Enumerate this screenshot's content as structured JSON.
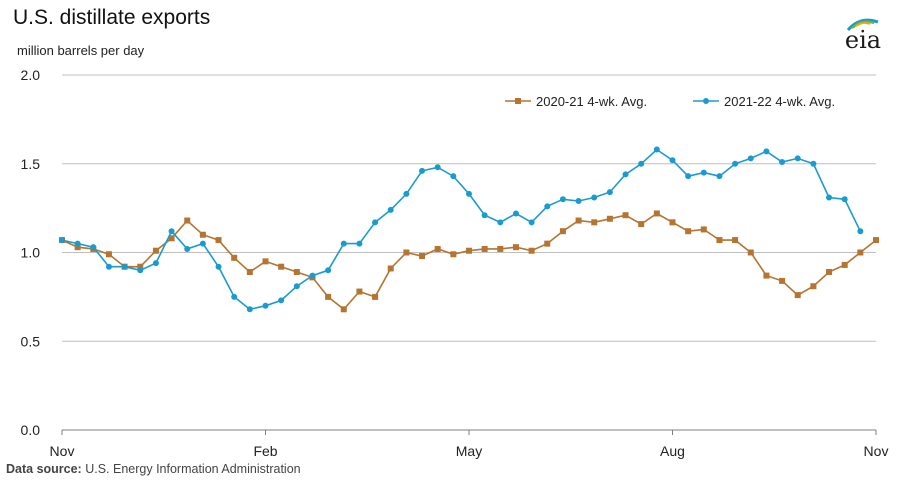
{
  "header": {
    "title": "U.S. distillate exports",
    "unit": "million barrels per day"
  },
  "logo": {
    "text": "eia"
  },
  "footer": {
    "source_label": "Data source:",
    "source_text": "U.S. Energy Information Administration"
  },
  "colors": {
    "series_2020": "#b5742f",
    "series_2021": "#1a9bd0",
    "grid": "#bfbfbf",
    "axis": "#7f7f7f"
  },
  "chart_data": {
    "type": "line",
    "title": "U.S. distillate exports",
    "ylabel": "million barrels per day",
    "ylim": [
      0,
      2.0
    ],
    "yticks": [
      "0.0",
      "0.5",
      "1.0",
      "1.5",
      "2.0"
    ],
    "xticks": [
      "Nov",
      "Feb",
      "May",
      "Aug",
      "Nov"
    ],
    "legend_position": "top-right",
    "grid": true,
    "series": [
      {
        "name": "2020-21  4-wk. Avg.",
        "marker": "square",
        "values": [
          1.07,
          1.03,
          1.02,
          0.99,
          0.92,
          0.92,
          1.01,
          1.08,
          1.18,
          1.1,
          1.07,
          0.97,
          0.89,
          0.95,
          0.92,
          0.89,
          0.86,
          0.75,
          0.68,
          0.78,
          0.75,
          0.91,
          1.0,
          0.98,
          1.02,
          0.99,
          1.01,
          1.02,
          1.02,
          1.03,
          1.01,
          1.05,
          1.12,
          1.18,
          1.17,
          1.19,
          1.21,
          1.16,
          1.22,
          1.17,
          1.12,
          1.13,
          1.07,
          1.07,
          1.0,
          0.87,
          0.84,
          0.76,
          0.81,
          0.89,
          0.93,
          1.0,
          1.07
        ]
      },
      {
        "name": "2021-22  4-wk. Avg.",
        "marker": "circle",
        "values": [
          1.07,
          1.05,
          1.03,
          0.92,
          0.92,
          0.9,
          0.94,
          1.12,
          1.02,
          1.05,
          0.92,
          0.75,
          0.68,
          0.7,
          0.73,
          0.81,
          0.87,
          0.9,
          1.05,
          1.05,
          1.17,
          1.24,
          1.33,
          1.46,
          1.48,
          1.43,
          1.33,
          1.21,
          1.17,
          1.22,
          1.17,
          1.26,
          1.3,
          1.29,
          1.31,
          1.34,
          1.44,
          1.5,
          1.58,
          1.52,
          1.43,
          1.45,
          1.43,
          1.5,
          1.53,
          1.57,
          1.51,
          1.53,
          1.5,
          1.31,
          1.3,
          1.12
        ]
      }
    ]
  }
}
